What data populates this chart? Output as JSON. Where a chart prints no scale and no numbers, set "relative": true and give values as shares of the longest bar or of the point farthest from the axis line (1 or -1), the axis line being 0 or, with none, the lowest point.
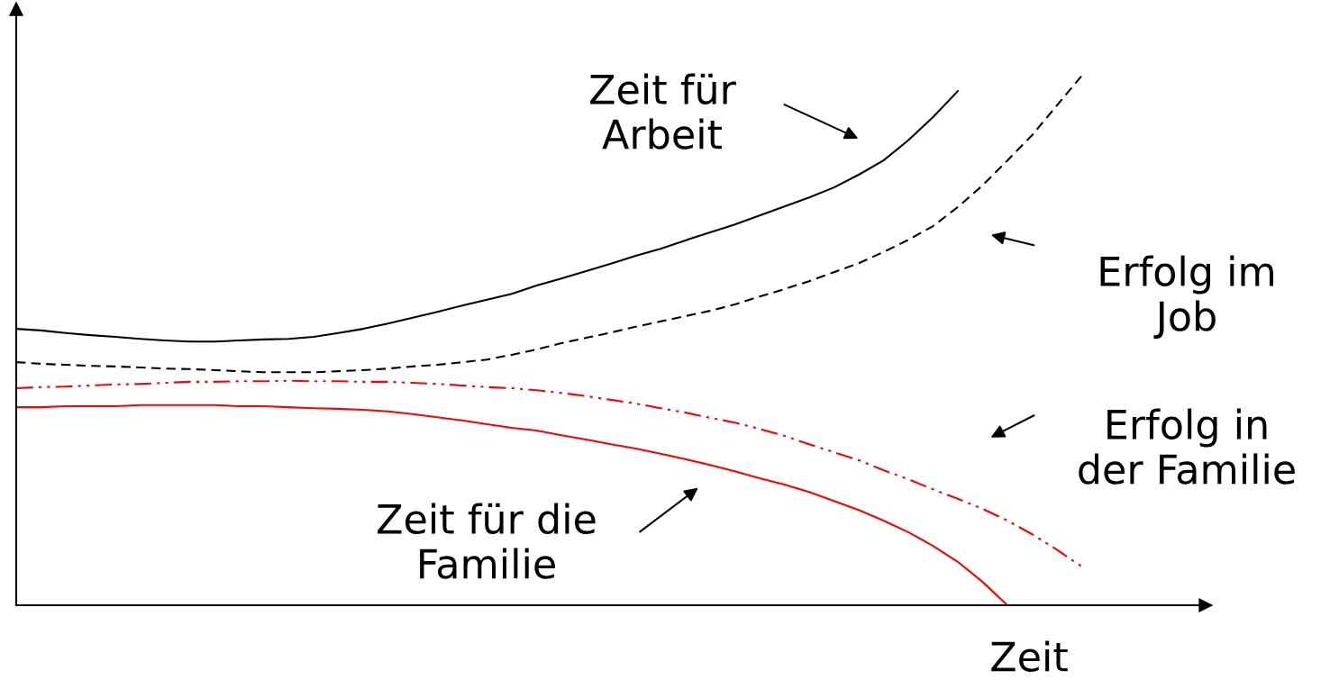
{
  "chart_data": {
    "type": "line",
    "relative": true,
    "xlabel": "Zeit",
    "grid": false,
    "legend": false,
    "marker": "none",
    "annotations": [
      "Zeit für\nArbeit",
      "Erfolg im\nJob",
      "Erfolg in\nder Familie",
      "Zeit für die\nFamilie"
    ],
    "categories": [
      null,
      null,
      null,
      null,
      null,
      null,
      null,
      null,
      null,
      null,
      null,
      null,
      null,
      null,
      null,
      null,
      null,
      null,
      null,
      null,
      null,
      null,
      null,
      null,
      null,
      null,
      null,
      null,
      null,
      null,
      null,
      null,
      null,
      null,
      null,
      null,
      null,
      null,
      null,
      null,
      null,
      null,
      null,
      null,
      null,
      null,
      null,
      null,
      null
    ],
    "series": [
      {
        "color": "#000000",
        "line_style": "solid",
        "values": [
          0.522,
          0.519,
          0.514,
          0.51,
          0.507,
          0.503,
          0.5,
          0.498,
          0.498,
          0.5,
          0.502,
          0.503,
          0.507,
          0.514,
          0.522,
          0.532,
          0.543,
          0.554,
          0.566,
          0.577,
          0.588,
          0.604,
          0.617,
          0.631,
          0.645,
          0.66,
          0.673,
          0.689,
          0.704,
          0.719,
          0.736,
          0.753,
          0.77,
          0.789,
          0.813,
          0.84,
          0.878,
          0.922,
          0.971,
          null,
          null,
          null,
          null,
          null,
          null,
          null,
          null,
          null,
          null
        ]
      },
      {
        "color": "#000000",
        "line_style": "dashed",
        "values": [
          0.459,
          0.456,
          0.454,
          0.452,
          0.451,
          0.449,
          0.447,
          0.446,
          0.444,
          0.442,
          0.44,
          0.44,
          0.44,
          0.442,
          0.444,
          0.447,
          0.451,
          0.454,
          0.459,
          0.464,
          0.473,
          0.483,
          0.495,
          0.505,
          0.515,
          0.526,
          0.536,
          0.546,
          0.556,
          0.568,
          0.583,
          0.597,
          0.612,
          0.629,
          0.646,
          0.667,
          0.69,
          0.716,
          0.752,
          0.793,
          0.84,
          0.888,
          0.944,
          1.0,
          null,
          null,
          null,
          null,
          null
        ]
      },
      {
        "color": "#ff0000",
        "line_style": "dashdotdot",
        "values": [
          0.41,
          0.412,
          0.413,
          0.415,
          0.417,
          0.418,
          0.42,
          0.422,
          0.422,
          0.423,
          0.423,
          0.424,
          0.423,
          0.423,
          0.422,
          0.422,
          0.42,
          0.418,
          0.415,
          0.412,
          0.41,
          0.406,
          0.401,
          0.395,
          0.388,
          0.381,
          0.372,
          0.364,
          0.354,
          0.345,
          0.333,
          0.32,
          0.304,
          0.289,
          0.274,
          0.255,
          0.238,
          0.219,
          0.201,
          0.182,
          0.16,
          0.134,
          0.105,
          0.073,
          null,
          null,
          null,
          null,
          null
        ]
      },
      {
        "color": "#ff0000",
        "line_style": "solid",
        "values": [
          0.374,
          0.374,
          0.376,
          0.376,
          0.376,
          0.378,
          0.378,
          0.378,
          0.378,
          0.376,
          0.376,
          0.374,
          0.372,
          0.371,
          0.369,
          0.366,
          0.361,
          0.355,
          0.349,
          0.342,
          0.335,
          0.33,
          0.321,
          0.313,
          0.304,
          0.296,
          0.286,
          0.276,
          0.265,
          0.253,
          0.24,
          0.228,
          0.214,
          0.197,
          0.18,
          0.16,
          0.138,
          0.112,
          0.082,
          0.044,
          0.0,
          null,
          null,
          null,
          null,
          null,
          null,
          null,
          null
        ]
      }
    ]
  }
}
